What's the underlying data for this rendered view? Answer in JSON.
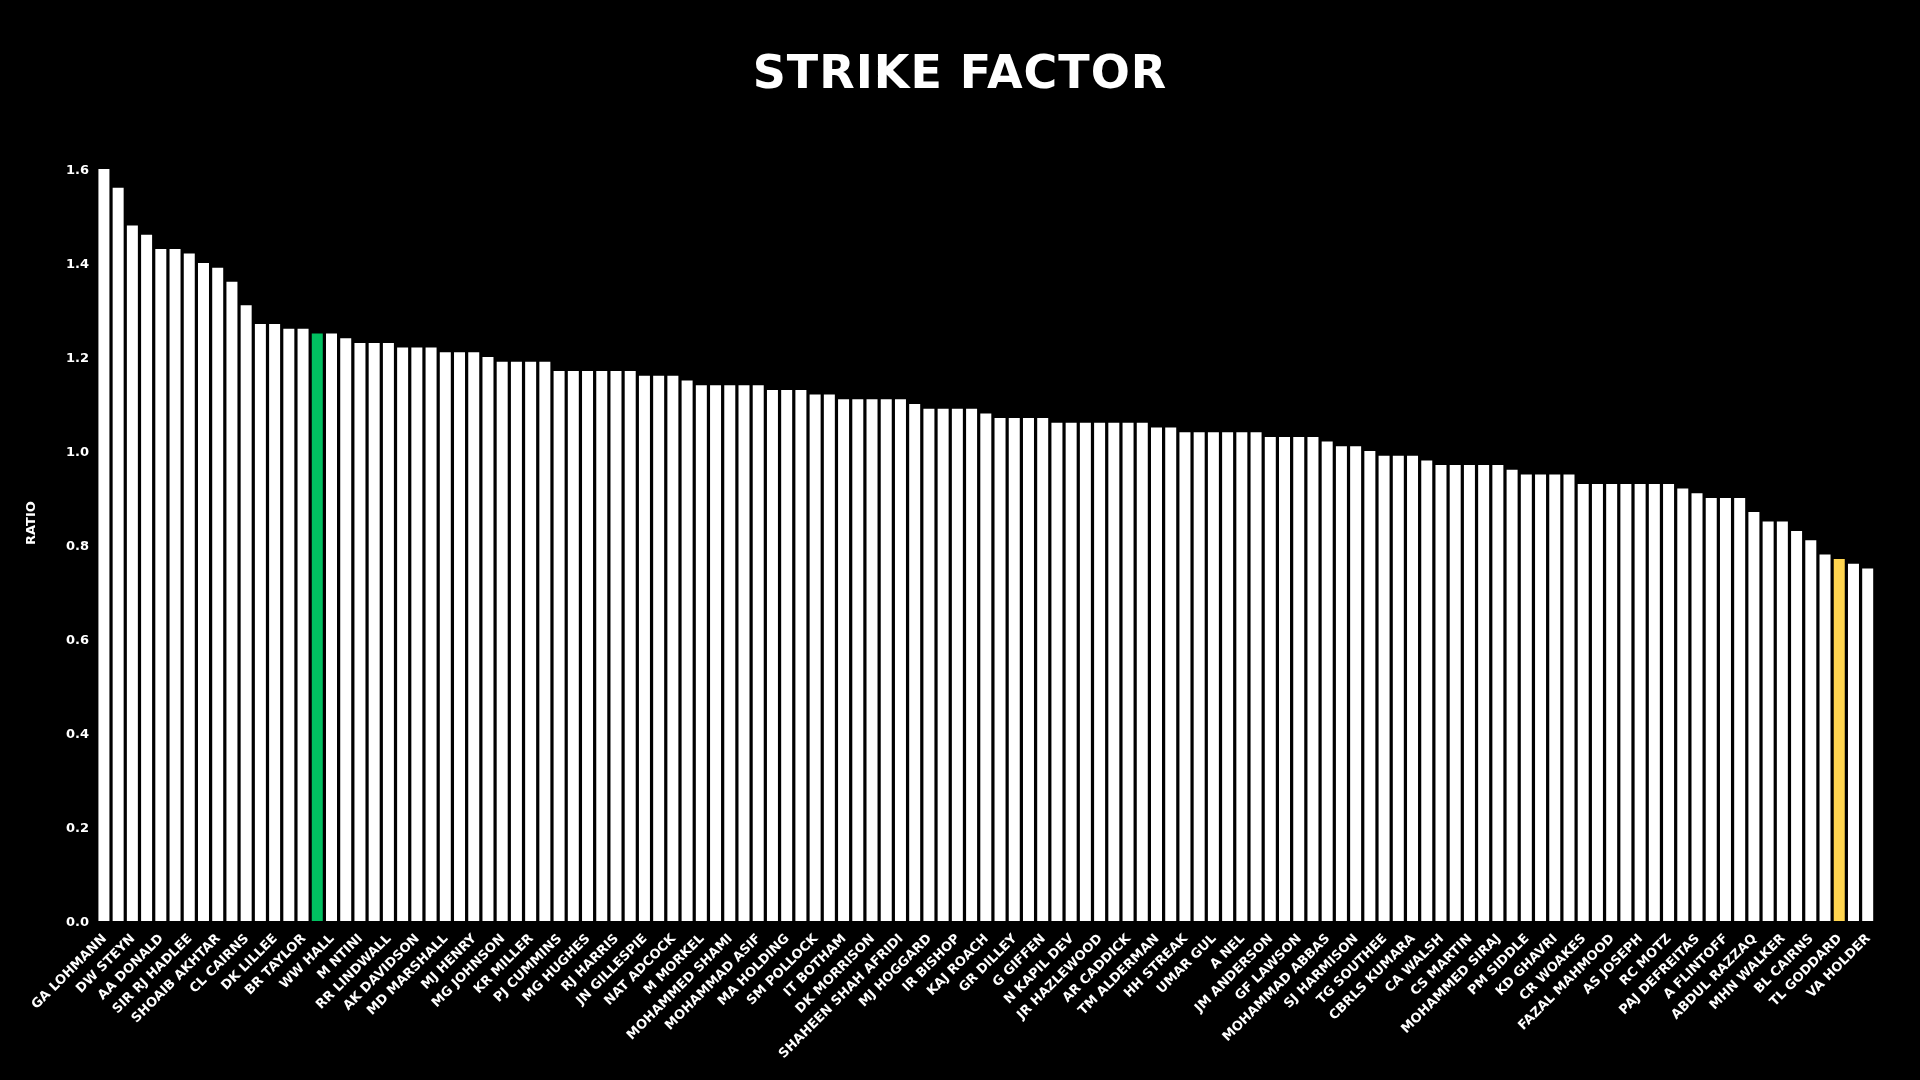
{
  "chart_data": {
    "type": "bar",
    "title": "STRIKE FACTOR",
    "ylabel": "RATIO",
    "categories": [
      "GA LOHMANN",
      null,
      "DW STEYN",
      null,
      "AA DONALD",
      null,
      "SIR RJ HADLEE",
      null,
      "SHOAIB AKHTAR",
      null,
      "CL CAIRNS",
      null,
      "DK LILLEE",
      null,
      "BR TAYLOR",
      null,
      "WW HALL",
      null,
      "M NTINI",
      null,
      "RR LINDWALL",
      null,
      "AK DAVIDSON",
      null,
      "MD MARSHALL",
      null,
      "MJ HENRY",
      null,
      "MG JOHNSON",
      null,
      "KR MILLER",
      null,
      "PJ CUMMINS",
      null,
      "MG HUGHES",
      null,
      "RJ HARRIS",
      null,
      "JN GILLESPIE",
      null,
      "NAT ADCOCK",
      null,
      "M MORKEL",
      null,
      "MOHAMMED SHAMI",
      null,
      "MOHAMMAD ASIF",
      null,
      "MA HOLDING",
      null,
      "SM POLLOCK",
      null,
      "IT BOTHAM",
      null,
      "DK MORRISON",
      null,
      "SHAHEEN SHAH AFRIDI",
      null,
      "MJ HOGGARD",
      null,
      "IR BISHOP",
      null,
      "KAJ ROACH",
      null,
      "GR DILLEY",
      null,
      "G GIFFEN",
      null,
      "N KAPIL DEV",
      null,
      "JR HAZLEWOOD",
      null,
      "AR CADDICK",
      null,
      "TM ALDERMAN",
      null,
      "HH STREAK",
      null,
      "UMAR GUL",
      null,
      "A NEL",
      null,
      "JM ANDERSON",
      null,
      "GF LAWSON",
      null,
      "MOHAMMAD ABBAS",
      null,
      "SJ HARMISON",
      null,
      "TG SOUTHEE",
      null,
      "CBRLS KUMARA",
      null,
      "CA WALSH",
      null,
      "CS MARTIN",
      null,
      "MOHAMMED SIRAJ",
      null,
      "PM SIDDLE",
      null,
      "KD GHAVRI",
      null,
      "CR WOAKES",
      null,
      "FAZAL MAHMOOD",
      null,
      "AS JOSEPH",
      null,
      "RC MOTZ",
      null,
      "PAJ DEFREITAS",
      null,
      "A FLINTOFF",
      null,
      "ABDUL RAZZAQ",
      null,
      "MHN WALKER",
      null,
      "BL CAIRNS",
      null,
      "TL GODDARD",
      null,
      "VA HOLDER"
    ],
    "values": [
      1.6,
      1.56,
      1.48,
      1.46,
      1.43,
      1.43,
      1.42,
      1.4,
      1.39,
      1.36,
      1.31,
      1.27,
      1.27,
      1.26,
      1.26,
      1.25,
      1.25,
      1.24,
      1.23,
      1.23,
      1.23,
      1.22,
      1.22,
      1.22,
      1.21,
      1.21,
      1.21,
      1.2,
      1.19,
      1.19,
      1.19,
      1.19,
      1.17,
      1.17,
      1.17,
      1.17,
      1.17,
      1.17,
      1.16,
      1.16,
      1.16,
      1.15,
      1.14,
      1.14,
      1.14,
      1.14,
      1.14,
      1.13,
      1.13,
      1.13,
      1.12,
      1.12,
      1.11,
      1.11,
      1.11,
      1.11,
      1.11,
      1.1,
      1.09,
      1.09,
      1.09,
      1.09,
      1.08,
      1.07,
      1.07,
      1.07,
      1.07,
      1.06,
      1.06,
      1.06,
      1.06,
      1.06,
      1.06,
      1.06,
      1.05,
      1.05,
      1.04,
      1.04,
      1.04,
      1.04,
      1.04,
      1.04,
      1.03,
      1.03,
      1.03,
      1.03,
      1.02,
      1.01,
      1.01,
      1.0,
      0.99,
      0.99,
      0.99,
      0.98,
      0.97,
      0.97,
      0.97,
      0.97,
      0.97,
      0.96,
      0.95,
      0.95,
      0.95,
      0.95,
      0.93,
      0.93,
      0.93,
      0.93,
      0.93,
      0.93,
      0.93,
      0.92,
      0.91,
      0.9,
      0.9,
      0.9,
      0.87,
      0.85,
      0.85,
      0.83,
      0.81,
      0.78,
      0.77,
      0.76,
      0.75
    ],
    "colors": [
      "#ffffff",
      "#ffffff",
      "#ffffff",
      "#ffffff",
      "#ffffff",
      "#ffffff",
      "#ffffff",
      "#ffffff",
      "#ffffff",
      "#ffffff",
      "#ffffff",
      "#ffffff",
      "#ffffff",
      "#ffffff",
      "#ffffff",
      "#00c060",
      "#ffffff",
      "#ffffff",
      "#ffffff",
      "#ffffff",
      "#ffffff",
      "#ffffff",
      "#ffffff",
      "#ffffff",
      "#ffffff",
      "#ffffff",
      "#ffffff",
      "#ffffff",
      "#ffffff",
      "#ffffff",
      "#ffffff",
      "#ffffff",
      "#ffffff",
      "#ffffff",
      "#ffffff",
      "#ffffff",
      "#ffffff",
      "#ffffff",
      "#ffffff",
      "#ffffff",
      "#ffffff",
      "#ffffff",
      "#ffffff",
      "#ffffff",
      "#ffffff",
      "#ffffff",
      "#ffffff",
      "#ffffff",
      "#ffffff",
      "#ffffff",
      "#ffffff",
      "#ffffff",
      "#ffffff",
      "#ffffff",
      "#ffffff",
      "#ffffff",
      "#ffffff",
      "#ffffff",
      "#ffffff",
      "#ffffff",
      "#ffffff",
      "#ffffff",
      "#ffffff",
      "#ffffff",
      "#ffffff",
      "#ffffff",
      "#ffffff",
      "#ffffff",
      "#ffffff",
      "#ffffff",
      "#ffffff",
      "#ffffff",
      "#ffffff",
      "#ffffff",
      "#ffffff",
      "#ffffff",
      "#ffffff",
      "#ffffff",
      "#ffffff",
      "#ffffff",
      "#ffffff",
      "#ffffff",
      "#ffffff",
      "#ffffff",
      "#ffffff",
      "#ffffff",
      "#ffffff",
      "#ffffff",
      "#ffffff",
      "#ffffff",
      "#ffffff",
      "#ffffff",
      "#ffffff",
      "#ffffff",
      "#ffffff",
      "#ffffff",
      "#ffffff",
      "#ffffff",
      "#ffffff",
      "#ffffff",
      "#ffffff",
      "#ffffff",
      "#ffffff",
      "#ffffff",
      "#ffffff",
      "#ffffff",
      "#ffffff",
      "#ffffff",
      "#ffffff",
      "#ffffff",
      "#ffffff",
      "#ffffff",
      "#ffffff",
      "#ffffff",
      "#ffffff",
      "#ffffff",
      "#ffffff",
      "#ffffff",
      "#ffffff",
      "#ffffff",
      "#ffffff",
      "#ffffff",
      "#ffd54f",
      "#ffffff",
      "#ffffff"
    ],
    "ylim": [
      0,
      1.6
    ],
    "yticks": [
      {
        "value": 0,
        "label": "0.0"
      },
      {
        "value": 0.2,
        "label": "0.2"
      },
      {
        "value": 0.4,
        "label": "0.4"
      },
      {
        "value": 0.6,
        "label": "0.6"
      },
      {
        "value": 0.8,
        "label": "0.8"
      },
      {
        "value": 1.0,
        "label": "1.0"
      },
      {
        "value": 1.2,
        "label": "1.2"
      },
      {
        "value": 1.4,
        "label": "1.4"
      },
      {
        "value": 1.6,
        "label": "1.6"
      }
    ]
  }
}
